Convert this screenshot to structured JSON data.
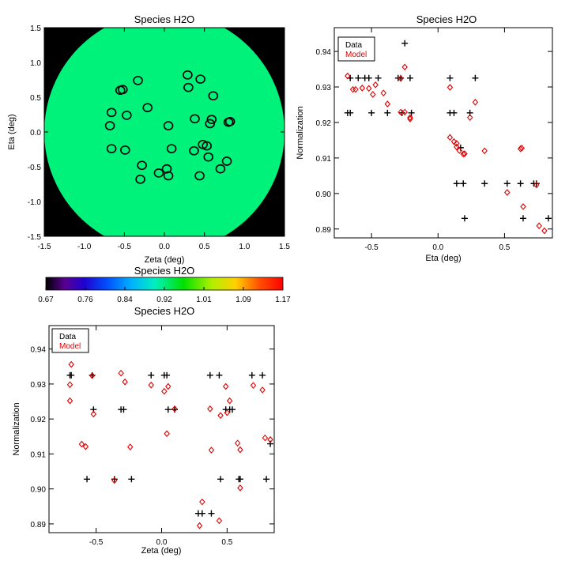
{
  "chart_data": [
    {
      "id": "map",
      "type": "heatmap",
      "title": "Species H2O",
      "xlabel": "Zeta (deg)",
      "ylabel": "Eta (deg)",
      "xlim": [
        -1.5,
        1.5
      ],
      "ylim": [
        -1.5,
        1.5
      ],
      "xticks": [
        "-1.5",
        "-1.0",
        "-0.5",
        "0.0",
        "0.5",
        "1.0",
        "1.5"
      ],
      "yticks": [
        "-1.5",
        "-1.0",
        "-0.5",
        "0.0",
        "0.5",
        "1.0",
        "1.5"
      ],
      "disk_radius": 1.5,
      "disk_color": "#00f27a",
      "background_color": "#000000",
      "markers": [
        {
          "x": -0.66,
          "y": 0.28
        },
        {
          "x": -0.68,
          "y": 0.09
        },
        {
          "x": -0.55,
          "y": 0.6
        },
        {
          "x": -0.52,
          "y": 0.61
        },
        {
          "x": -0.33,
          "y": 0.74
        },
        {
          "x": -0.47,
          "y": 0.24
        },
        {
          "x": -0.21,
          "y": 0.35
        },
        {
          "x": -0.66,
          "y": -0.24
        },
        {
          "x": -0.49,
          "y": -0.26
        },
        {
          "x": 0.05,
          "y": 0.09
        },
        {
          "x": 0.29,
          "y": 0.82
        },
        {
          "x": 0.3,
          "y": 0.64
        },
        {
          "x": 0.45,
          "y": 0.76
        },
        {
          "x": 0.61,
          "y": 0.52
        },
        {
          "x": 0.38,
          "y": 0.19
        },
        {
          "x": 0.59,
          "y": 0.18
        },
        {
          "x": 0.57,
          "y": 0.12
        },
        {
          "x": 0.82,
          "y": 0.15
        },
        {
          "x": 0.8,
          "y": 0.14
        },
        {
          "x": 0.09,
          "y": -0.24
        },
        {
          "x": 0.37,
          "y": -0.27
        },
        {
          "x": 0.48,
          "y": -0.18
        },
        {
          "x": 0.53,
          "y": -0.2
        },
        {
          "x": 0.55,
          "y": -0.36
        },
        {
          "x": 0.78,
          "y": -0.42
        },
        {
          "x": 0.7,
          "y": -0.53
        },
        {
          "x": 0.44,
          "y": -0.63
        },
        {
          "x": -0.28,
          "y": -0.48
        },
        {
          "x": -0.07,
          "y": -0.59
        },
        {
          "x": 0.03,
          "y": -0.53
        },
        {
          "x": 0.05,
          "y": -0.63
        },
        {
          "x": -0.3,
          "y": -0.68
        }
      ]
    },
    {
      "id": "colorbar",
      "type": "colorbar",
      "title": "Species H2O",
      "tick_labels": [
        "0.67",
        "0.76",
        "0.84",
        "0.92",
        "1.01",
        "1.09",
        "1.17"
      ],
      "range": [
        0.67,
        1.17
      ]
    },
    {
      "id": "eta",
      "type": "scatter",
      "title": "Species H2O",
      "xlabel": "Eta (deg)",
      "ylabel": "Normalization",
      "xlim": [
        -0.78,
        0.86
      ],
      "ylim": [
        0.8875,
        0.9467
      ],
      "xtick_values": [
        -0.5,
        0.0,
        0.5
      ],
      "xticks": [
        "-0.5",
        "0.0",
        "0.5"
      ],
      "ytick_values": [
        0.89,
        0.9,
        0.91,
        0.92,
        0.93,
        0.94
      ],
      "yticks": [
        "0.89",
        "0.90",
        "0.91",
        "0.92",
        "0.93",
        "0.94"
      ],
      "legend": {
        "position": "top-left",
        "entries": [
          "Data",
          "Model"
        ]
      },
      "series": [
        {
          "name": "Data",
          "color": "#000000",
          "marker": "plus",
          "points": [
            [
              -0.68,
              0.9227
            ],
            [
              -0.66,
              0.9227
            ],
            [
              -0.66,
              0.9325
            ],
            [
              -0.6,
              0.9325
            ],
            [
              -0.55,
              0.9325
            ],
            [
              -0.52,
              0.9325
            ],
            [
              -0.5,
              0.9227
            ],
            [
              -0.45,
              0.9325
            ],
            [
              -0.38,
              0.9227
            ],
            [
              -0.3,
              0.9325
            ],
            [
              -0.28,
              0.9325
            ],
            [
              -0.27,
              0.9227
            ],
            [
              -0.25,
              0.9423
            ],
            [
              -0.21,
              0.9325
            ],
            [
              -0.2,
              0.9227
            ],
            [
              0.09,
              0.9325
            ],
            [
              0.09,
              0.9227
            ],
            [
              0.12,
              0.9227
            ],
            [
              0.14,
              0.9028
            ],
            [
              0.17,
              0.9129
            ],
            [
              0.19,
              0.9028
            ],
            [
              0.2,
              0.893
            ],
            [
              0.24,
              0.9227
            ],
            [
              0.28,
              0.9325
            ],
            [
              0.35,
              0.9028
            ],
            [
              0.52,
              0.9028
            ],
            [
              0.62,
              0.9028
            ],
            [
              0.64,
              0.893
            ],
            [
              0.72,
              0.9028
            ],
            [
              0.74,
              0.9028
            ],
            [
              0.83,
              0.893
            ]
          ]
        },
        {
          "name": "Model",
          "color": "#e00000",
          "marker": "diamond",
          "points": [
            [
              -0.68,
              0.9331
            ],
            [
              -0.64,
              0.9293
            ],
            [
              -0.62,
              0.9293
            ],
            [
              -0.57,
              0.9297
            ],
            [
              -0.52,
              0.9296
            ],
            [
              -0.49,
              0.9279
            ],
            [
              -0.47,
              0.9306
            ],
            [
              -0.41,
              0.9283
            ],
            [
              -0.38,
              0.9252
            ],
            [
              -0.28,
              0.9324
            ],
            [
              -0.28,
              0.9229
            ],
            [
              -0.25,
              0.9356
            ],
            [
              -0.25,
              0.9229
            ],
            [
              -0.21,
              0.921
            ],
            [
              -0.21,
              0.9214
            ],
            [
              0.09,
              0.9299
            ],
            [
              0.09,
              0.9158
            ],
            [
              0.12,
              0.9146
            ],
            [
              0.14,
              0.9141
            ],
            [
              0.14,
              0.9131
            ],
            [
              0.16,
              0.9121
            ],
            [
              0.19,
              0.9111
            ],
            [
              0.2,
              0.9112
            ],
            [
              0.24,
              0.9214
            ],
            [
              0.28,
              0.9257
            ],
            [
              0.35,
              0.912
            ],
            [
              0.52,
              0.9003
            ],
            [
              0.62,
              0.9126
            ],
            [
              0.63,
              0.9128
            ],
            [
              0.64,
              0.8963
            ],
            [
              0.74,
              0.9024
            ],
            [
              0.76,
              0.8909
            ],
            [
              0.8,
              0.8895
            ]
          ]
        }
      ]
    },
    {
      "id": "zeta",
      "type": "scatter",
      "title": "Species H2O",
      "xlabel": "Zeta (deg)",
      "ylabel": "Normalization",
      "xlim": [
        -0.86,
        0.86
      ],
      "ylim": [
        0.8875,
        0.9467
      ],
      "xtick_values": [
        -0.5,
        0.0,
        0.5
      ],
      "xticks": [
        "-0.5",
        "0.0",
        "0.5"
      ],
      "ytick_values": [
        0.89,
        0.9,
        0.91,
        0.92,
        0.93,
        0.94
      ],
      "yticks": [
        "0.89",
        "0.90",
        "0.91",
        "0.92",
        "0.93",
        "0.94"
      ],
      "legend": {
        "position": "top-left",
        "entries": [
          "Data",
          "Model"
        ]
      },
      "series": [
        {
          "name": "Data",
          "color": "#000000",
          "marker": "plus",
          "points": [
            [
              -0.7,
              0.9325
            ],
            [
              -0.69,
              0.9325
            ],
            [
              -0.57,
              0.9028
            ],
            [
              -0.53,
              0.9325
            ],
            [
              -0.52,
              0.9227
            ],
            [
              -0.36,
              0.9028
            ],
            [
              -0.31,
              0.9227
            ],
            [
              -0.29,
              0.9227
            ],
            [
              -0.23,
              0.9028
            ],
            [
              -0.08,
              0.9325
            ],
            [
              0.02,
              0.9325
            ],
            [
              0.04,
              0.9325
            ],
            [
              0.05,
              0.9227
            ],
            [
              0.1,
              0.9227
            ],
            [
              0.28,
              0.893
            ],
            [
              0.31,
              0.893
            ],
            [
              0.37,
              0.9325
            ],
            [
              0.38,
              0.893
            ],
            [
              0.44,
              0.9325
            ],
            [
              0.45,
              0.9028
            ],
            [
              0.49,
              0.9227
            ],
            [
              0.52,
              0.9227
            ],
            [
              0.54,
              0.9227
            ],
            [
              0.59,
              0.9028
            ],
            [
              0.6,
              0.9028
            ],
            [
              0.69,
              0.9325
            ],
            [
              0.77,
              0.9325
            ],
            [
              0.8,
              0.9028
            ],
            [
              0.83,
              0.9129
            ]
          ]
        },
        {
          "name": "Model",
          "color": "#e00000",
          "marker": "diamond",
          "points": [
            [
              -0.7,
              0.9298
            ],
            [
              -0.69,
              0.9356
            ],
            [
              -0.7,
              0.9252
            ],
            [
              -0.61,
              0.9128
            ],
            [
              -0.58,
              0.9121
            ],
            [
              -0.53,
              0.9324
            ],
            [
              -0.52,
              0.9214
            ],
            [
              -0.36,
              0.9024
            ],
            [
              -0.31,
              0.9331
            ],
            [
              -0.28,
              0.9306
            ],
            [
              -0.24,
              0.912
            ],
            [
              -0.08,
              0.9297
            ],
            [
              0.02,
              0.9279
            ],
            [
              0.04,
              0.9158
            ],
            [
              0.05,
              0.9293
            ],
            [
              0.1,
              0.9229
            ],
            [
              0.29,
              0.8895
            ],
            [
              0.31,
              0.8963
            ],
            [
              0.37,
              0.9229
            ],
            [
              0.38,
              0.9111
            ],
            [
              0.44,
              0.8909
            ],
            [
              0.45,
              0.921
            ],
            [
              0.49,
              0.9293
            ],
            [
              0.5,
              0.9218
            ],
            [
              0.52,
              0.9252
            ],
            [
              0.58,
              0.9131
            ],
            [
              0.6,
              0.9112
            ],
            [
              0.6,
              0.9003
            ],
            [
              0.7,
              0.9296
            ],
            [
              0.77,
              0.9283
            ],
            [
              0.79,
              0.9146
            ],
            [
              0.83,
              0.9141
            ]
          ]
        }
      ]
    }
  ]
}
